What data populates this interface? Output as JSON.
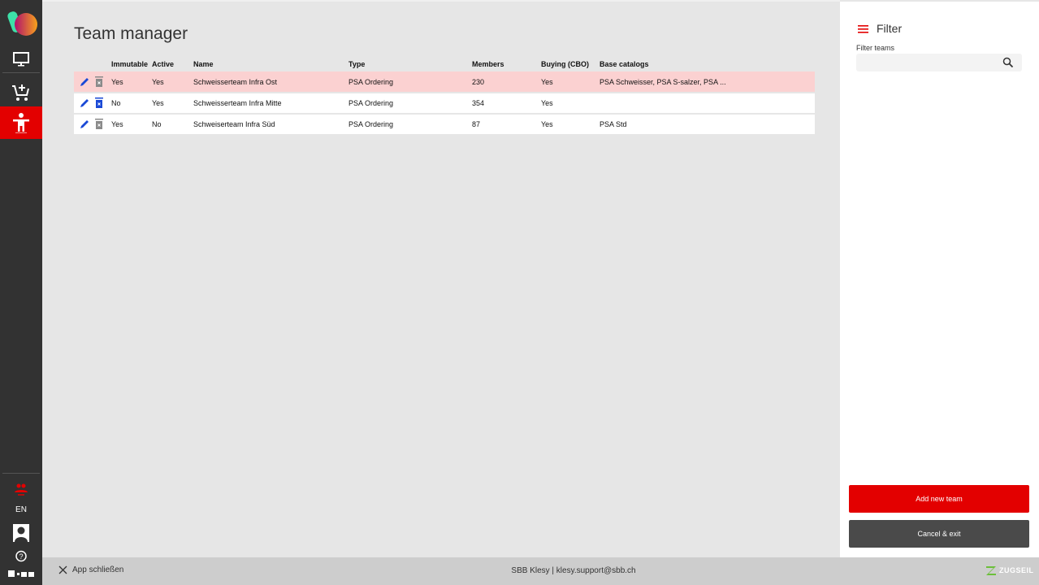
{
  "colors": {
    "accent": "#e30000",
    "sidebar": "#323232",
    "edit": "#1a49d6"
  },
  "sidebar": {
    "items": [
      {
        "icon": "monitor-icon"
      },
      {
        "icon": "cart-add-icon"
      },
      {
        "icon": "person-icon",
        "active": true
      }
    ],
    "lang": "EN"
  },
  "main": {
    "title": "Team manager",
    "columns": [
      "",
      "Immutable",
      "Active",
      "Name",
      "Type",
      "Members",
      "Buying (CBO)",
      "Base catalogs"
    ],
    "rows": [
      {
        "immutable": "Yes",
        "active": "Yes",
        "name": "Schweisserteam Infra Ost",
        "type": "PSA Ordering",
        "members": "230",
        "buying": "Yes",
        "catalogs": "PSA Schweisser, PSA S-salzer, PSA ...",
        "selected": true,
        "deletable": false
      },
      {
        "immutable": "No",
        "active": "Yes",
        "name": "Schweisserteam Infra Mitte",
        "type": "PSA Ordering",
        "members": "354",
        "buying": "Yes",
        "catalogs": "",
        "selected": false,
        "deletable": true
      },
      {
        "immutable": "Yes",
        "active": "No",
        "name": "Schweiserteam Infra Süd",
        "type": "PSA Ordering",
        "members": "87",
        "buying": "Yes",
        "catalogs": "PSA Std",
        "selected": false,
        "deletable": false
      }
    ]
  },
  "panel": {
    "title": "Filter",
    "filter_label": "Filter teams",
    "filter_value": "",
    "add_label": "Add new team",
    "cancel_label": "Cancel & exit"
  },
  "footer": {
    "close_label": "App schließen",
    "center": "SBB Klesy | klesy.support@sbb.ch",
    "brand": "ZUGSEIL"
  }
}
